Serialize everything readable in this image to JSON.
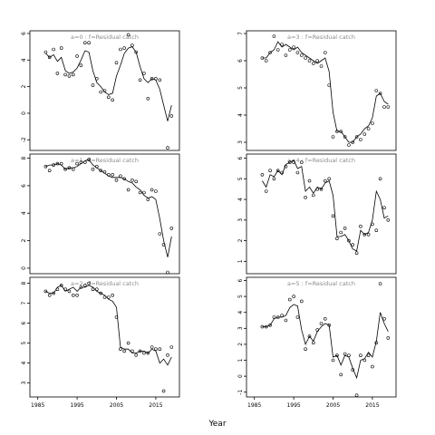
{
  "figure": {
    "xlabel": "Year"
  },
  "chart_data": [
    {
      "type": "line",
      "title": "a=0  :  f=Residual catch",
      "xlim": [
        1983,
        2021
      ],
      "ylim": [
        -2.8,
        6.2
      ],
      "yticks": [
        -2,
        0,
        2,
        4,
        6
      ],
      "xticks": [],
      "series": [
        {
          "style": "line",
          "x": [
            1987,
            1988,
            1989,
            1990,
            1991,
            1992,
            1993,
            1994,
            1995,
            1996,
            1997,
            1998,
            1999,
            2000,
            2001,
            2002,
            2003,
            2004,
            2005,
            2006,
            2007,
            2008,
            2009,
            2010,
            2011,
            2012,
            2013,
            2014,
            2015,
            2016,
            2017,
            2018,
            2019
          ],
          "y": [
            4.5,
            4.2,
            4.4,
            3.9,
            4.2,
            3.2,
            3.0,
            3.1,
            3.4,
            4.0,
            4.7,
            4.6,
            3.2,
            2.3,
            2.0,
            1.6,
            1.4,
            1.5,
            2.8,
            3.6,
            4.5,
            4.9,
            5.0,
            4.6,
            3.5,
            2.6,
            2.3,
            2.6,
            2.5,
            1.8,
            0.6,
            -0.6,
            0.6
          ]
        },
        {
          "style": "points",
          "x": [
            1987,
            1988,
            1989,
            1990,
            1991,
            1992,
            1993,
            1994,
            1995,
            1996,
            1997,
            1998,
            1999,
            2000,
            2001,
            2002,
            2003,
            2004,
            2005,
            2006,
            2007,
            2008,
            2009,
            2010,
            2011,
            2012,
            2013,
            2014,
            2015,
            2016,
            2018,
            2019
          ],
          "y": [
            4.6,
            4.2,
            4.8,
            3.0,
            4.9,
            2.9,
            2.8,
            2.9,
            4.3,
            3.6,
            5.3,
            5.3,
            2.1,
            2.6,
            1.6,
            1.7,
            1.2,
            1.0,
            3.8,
            4.8,
            4.9,
            5.9,
            5.1,
            4.6,
            2.5,
            3.0,
            1.1,
            2.6,
            2.6,
            2.5,
            -2.6,
            -0.2
          ]
        }
      ]
    },
    {
      "type": "line",
      "title": "a=3  :  f=Residual catch",
      "xlim": [
        1983,
        2021
      ],
      "ylim": [
        2.7,
        7.1
      ],
      "yticks": [
        3,
        4,
        5,
        6,
        7
      ],
      "xticks": [],
      "series": [
        {
          "style": "line",
          "x": [
            1987,
            1988,
            1989,
            1990,
            1991,
            1992,
            1993,
            1994,
            1995,
            1996,
            1997,
            1998,
            1999,
            2000,
            2001,
            2002,
            2003,
            2004,
            2005,
            2006,
            2007,
            2008,
            2009,
            2010,
            2011,
            2012,
            2013,
            2014,
            2015,
            2016,
            2017,
            2018,
            2019
          ],
          "y": [
            6.1,
            6.1,
            6.3,
            6.4,
            6.7,
            6.5,
            6.6,
            6.5,
            6.4,
            6.5,
            6.3,
            6.2,
            6.1,
            6.0,
            5.9,
            6.0,
            6.1,
            5.6,
            4.1,
            3.4,
            3.4,
            3.2,
            3.0,
            3.0,
            3.2,
            3.3,
            3.5,
            3.6,
            3.9,
            4.7,
            4.8,
            4.5,
            4.4
          ]
        },
        {
          "style": "points",
          "x": [
            1987,
            1988,
            1989,
            1990,
            1991,
            1992,
            1993,
            1994,
            1995,
            1996,
            1997,
            1998,
            1999,
            2000,
            2001,
            2002,
            2003,
            2004,
            2005,
            2006,
            2007,
            2008,
            2009,
            2010,
            2011,
            2012,
            2013,
            2014,
            2015,
            2016,
            2017,
            2018,
            2019
          ],
          "y": [
            6.1,
            6.0,
            6.3,
            6.9,
            6.4,
            6.6,
            6.2,
            6.4,
            6.5,
            6.3,
            6.2,
            6.1,
            6.0,
            5.9,
            6.0,
            5.8,
            6.3,
            5.1,
            3.2,
            3.4,
            3.4,
            3.2,
            2.9,
            3.0,
            3.2,
            3.1,
            3.3,
            3.5,
            3.7,
            4.9,
            4.8,
            4.3,
            4.3
          ]
        }
      ]
    },
    {
      "type": "line",
      "title": "a=1  :  f=Residual catch",
      "xlim": [
        1983,
        2021
      ],
      "ylim": [
        -0.4,
        8.3
      ],
      "yticks": [
        0,
        2,
        4,
        6,
        8
      ],
      "xticks": [],
      "series": [
        {
          "style": "line",
          "x": [
            1987,
            1988,
            1989,
            1990,
            1991,
            1992,
            1993,
            1994,
            1995,
            1996,
            1997,
            1998,
            1999,
            2000,
            2001,
            2002,
            2003,
            2004,
            2005,
            2006,
            2007,
            2008,
            2009,
            2010,
            2011,
            2012,
            2013,
            2014,
            2015,
            2016,
            2017,
            2018,
            2019
          ],
          "y": [
            7.4,
            7.5,
            7.5,
            7.6,
            7.5,
            7.2,
            7.3,
            7.3,
            7.4,
            7.6,
            7.8,
            7.9,
            7.5,
            7.3,
            7.1,
            6.9,
            6.7,
            6.6,
            6.6,
            6.6,
            6.5,
            6.3,
            6.2,
            5.9,
            5.7,
            5.3,
            5.1,
            5.2,
            5.0,
            3.6,
            2.0,
            0.8,
            2.3
          ]
        },
        {
          "style": "points",
          "x": [
            1987,
            1988,
            1989,
            1990,
            1991,
            1992,
            1993,
            1994,
            1995,
            1996,
            1997,
            1998,
            1999,
            2000,
            2001,
            2002,
            2003,
            2004,
            2005,
            2006,
            2007,
            2008,
            2009,
            2010,
            2011,
            2012,
            2013,
            2014,
            2015,
            2016,
            2017,
            2018,
            2019
          ],
          "y": [
            7.4,
            7.1,
            7.5,
            7.6,
            7.6,
            7.2,
            7.3,
            7.2,
            7.6,
            7.7,
            7.7,
            7.9,
            7.2,
            7.4,
            7.1,
            7.0,
            6.8,
            6.8,
            6.4,
            6.7,
            6.5,
            5.7,
            6.4,
            6.3,
            5.5,
            5.5,
            5.0,
            5.7,
            5.6,
            2.5,
            1.7,
            -0.3,
            2.9
          ]
        }
      ]
    },
    {
      "type": "line",
      "title": "a=4  :  f=Residual catch",
      "xlim": [
        1983,
        2021
      ],
      "ylim": [
        0.4,
        6.2
      ],
      "yticks": [
        1,
        2,
        3,
        4,
        5,
        6
      ],
      "xticks": [],
      "series": [
        {
          "style": "line",
          "x": [
            1987,
            1988,
            1989,
            1990,
            1991,
            1992,
            1993,
            1994,
            1995,
            1996,
            1997,
            1998,
            1999,
            2000,
            2001,
            2002,
            2003,
            2004,
            2005,
            2006,
            2007,
            2008,
            2009,
            2010,
            2011,
            2012,
            2013,
            2014,
            2015,
            2016,
            2017,
            2018,
            2019
          ],
          "y": [
            4.9,
            4.6,
            5.2,
            5.1,
            5.4,
            5.2,
            5.7,
            5.8,
            5.9,
            5.5,
            5.6,
            4.4,
            4.6,
            4.3,
            4.6,
            4.5,
            4.8,
            4.9,
            4.2,
            2.2,
            2.2,
            2.3,
            2.0,
            1.6,
            1.5,
            2.5,
            2.3,
            2.4,
            3.0,
            4.4,
            4.0,
            3.1,
            3.2
          ]
        },
        {
          "style": "points",
          "x": [
            1987,
            1988,
            1989,
            1990,
            1991,
            1992,
            1993,
            1994,
            1995,
            1996,
            1997,
            1998,
            1999,
            2000,
            2001,
            2002,
            2003,
            2004,
            2005,
            2006,
            2007,
            2008,
            2009,
            2010,
            2011,
            2012,
            2013,
            2014,
            2015,
            2016,
            2017,
            2018,
            2019
          ],
          "y": [
            5.2,
            4.4,
            5.4,
            5.0,
            5.4,
            5.3,
            5.6,
            5.8,
            5.8,
            5.3,
            5.8,
            4.1,
            4.9,
            4.2,
            4.5,
            4.5,
            4.9,
            5.0,
            3.2,
            2.1,
            2.4,
            2.6,
            2.0,
            1.8,
            1.4,
            2.7,
            2.3,
            2.3,
            2.8,
            2.5,
            5.0,
            3.6,
            3.0
          ]
        }
      ]
    },
    {
      "type": "line",
      "title": "a=2  :  f=Residual catch",
      "xlim": [
        1983,
        2021
      ],
      "ylim": [
        2.3,
        8.3
      ],
      "yticks": [
        3,
        4,
        5,
        6,
        7,
        8
      ],
      "xticks": [
        1985,
        1995,
        2005,
        2015
      ],
      "series": [
        {
          "style": "line",
          "x": [
            1987,
            1988,
            1989,
            1990,
            1991,
            1992,
            1993,
            1994,
            1995,
            1996,
            1997,
            1998,
            1999,
            2000,
            2001,
            2002,
            2003,
            2004,
            2005,
            2006,
            2007,
            2008,
            2009,
            2010,
            2011,
            2012,
            2013,
            2014,
            2015,
            2016,
            2017,
            2018,
            2019
          ],
          "y": [
            7.6,
            7.5,
            7.5,
            7.8,
            7.9,
            7.6,
            7.7,
            7.8,
            7.6,
            7.8,
            7.8,
            7.9,
            7.8,
            7.6,
            7.5,
            7.4,
            7.2,
            7.1,
            6.8,
            4.8,
            4.7,
            4.7,
            4.5,
            4.5,
            4.6,
            4.6,
            4.5,
            4.7,
            4.6,
            4.0,
            4.2,
            3.9,
            4.3
          ]
        },
        {
          "style": "points",
          "x": [
            1987,
            1988,
            1989,
            1990,
            1991,
            1992,
            1993,
            1994,
            1995,
            1996,
            1997,
            1998,
            1999,
            2000,
            2001,
            2002,
            2003,
            2004,
            2005,
            2006,
            2007,
            2008,
            2009,
            2010,
            2011,
            2012,
            2013,
            2014,
            2015,
            2016,
            2017,
            2018,
            2019
          ],
          "y": [
            7.6,
            7.4,
            7.5,
            7.7,
            7.9,
            7.7,
            7.6,
            7.4,
            7.4,
            7.8,
            7.9,
            8.0,
            7.7,
            7.7,
            7.5,
            7.3,
            7.3,
            7.4,
            6.3,
            4.7,
            4.6,
            5.0,
            4.6,
            4.4,
            4.6,
            4.5,
            4.5,
            4.8,
            4.7,
            4.7,
            2.6,
            4.4,
            4.8
          ]
        }
      ]
    },
    {
      "type": "line",
      "title": "a=5  :  f=Residual catch",
      "xlim": [
        1983,
        2021
      ],
      "ylim": [
        -1.3,
        6.2
      ],
      "yticks": [
        -1,
        0,
        1,
        2,
        3,
        4,
        5,
        6
      ],
      "xticks": [
        1985,
        1995,
        2005,
        2015
      ],
      "series": [
        {
          "style": "line",
          "x": [
            1987,
            1988,
            1989,
            1990,
            1991,
            1992,
            1993,
            1994,
            1995,
            1996,
            1997,
            1998,
            1999,
            2000,
            2001,
            2002,
            2003,
            2004,
            2005,
            2006,
            2007,
            2008,
            2009,
            2010,
            2011,
            2012,
            2013,
            2014,
            2015,
            2016,
            2017,
            2018,
            2019
          ],
          "y": [
            3.1,
            3.1,
            3.2,
            3.6,
            3.7,
            3.7,
            3.8,
            4.3,
            4.5,
            4.4,
            2.9,
            2.0,
            2.5,
            2.2,
            2.8,
            3.1,
            3.3,
            3.2,
            1.2,
            1.3,
            0.7,
            1.3,
            1.2,
            0.5,
            -0.1,
            1.0,
            1.1,
            1.5,
            1.2,
            2.2,
            4.0,
            3.3,
            2.8
          ]
        },
        {
          "style": "points",
          "x": [
            1987,
            1988,
            1989,
            1990,
            1991,
            1992,
            1993,
            1994,
            1995,
            1996,
            1997,
            1998,
            1999,
            2000,
            2001,
            2002,
            2003,
            2004,
            2005,
            2006,
            2007,
            2008,
            2009,
            2010,
            2011,
            2012,
            2013,
            2014,
            2015,
            2016,
            2017,
            2018,
            2019
          ],
          "y": [
            3.1,
            3.1,
            3.2,
            3.7,
            3.7,
            3.8,
            3.5,
            4.8,
            5.0,
            3.7,
            4.7,
            1.7,
            2.5,
            2.1,
            2.9,
            3.3,
            3.6,
            3.2,
            1.0,
            1.3,
            0.1,
            1.4,
            1.3,
            0.4,
            -1.2,
            1.3,
            1.0,
            1.3,
            0.6,
            2.1,
            5.8,
            3.6,
            2.4
          ]
        }
      ]
    }
  ]
}
